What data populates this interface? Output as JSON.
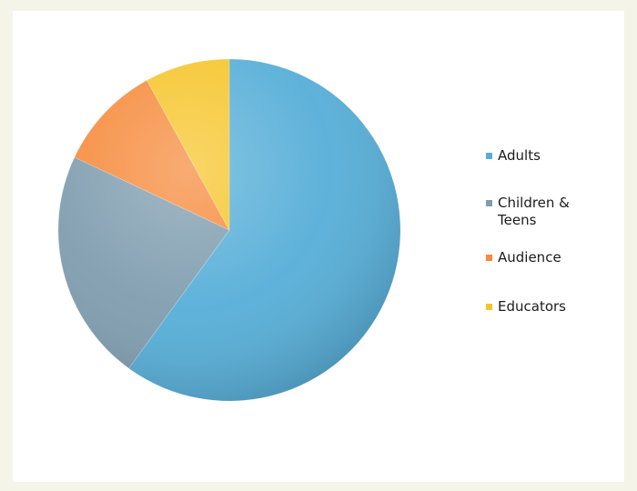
{
  "chart_data": {
    "type": "pie",
    "title": "",
    "slices": [
      {
        "label": "Adults",
        "value": 60,
        "color": "#56aed8"
      },
      {
        "label": "Children & Teens",
        "value": 22,
        "color": "#7f9daf"
      },
      {
        "label": "Audience",
        "value": 10,
        "color": "#f68b3d"
      },
      {
        "label": "Educators",
        "value": 8,
        "color": "#f6c52b"
      }
    ],
    "start_angle_deg": 0,
    "direction": "clockwise",
    "legend_position": "right"
  }
}
